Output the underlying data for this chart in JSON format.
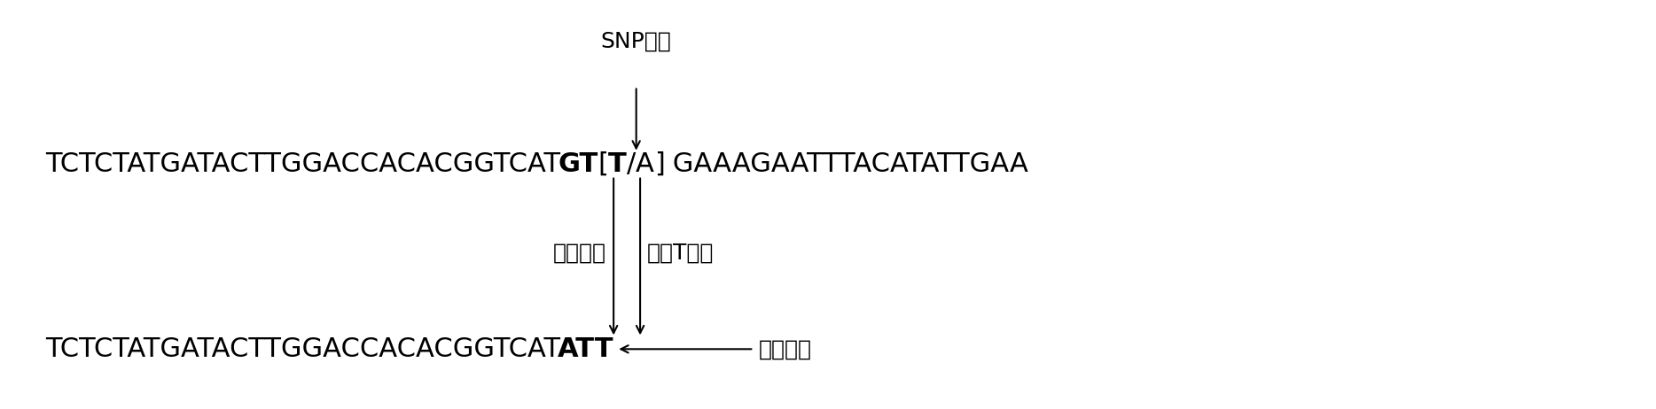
{
  "fig_width": 18.68,
  "fig_height": 4.62,
  "dpi": 100,
  "bg_color": "#ffffff",
  "snp_label": "SNP类型",
  "label_mismatch": "引入错配",
  "label_select": "选择T类型",
  "label_primer": "引物序列",
  "seq1_parts": [
    [
      "TCTCTATGATACTTGGACCACACGGTCAT",
      false
    ],
    [
      "GT",
      true
    ],
    [
      "[",
      false
    ],
    [
      "T",
      true
    ],
    [
      "/",
      false
    ],
    [
      "A",
      false
    ],
    [
      "]",
      false
    ],
    [
      " GAAAGAATTTACATATTGAA",
      false
    ]
  ],
  "seq2_parts": [
    [
      "TCTCTATGATACTTGGACCACACGGTCAT",
      false
    ],
    [
      "ATT",
      true
    ]
  ],
  "font_size_seq": 22,
  "font_size_label": 18,
  "font_color": "#000000"
}
